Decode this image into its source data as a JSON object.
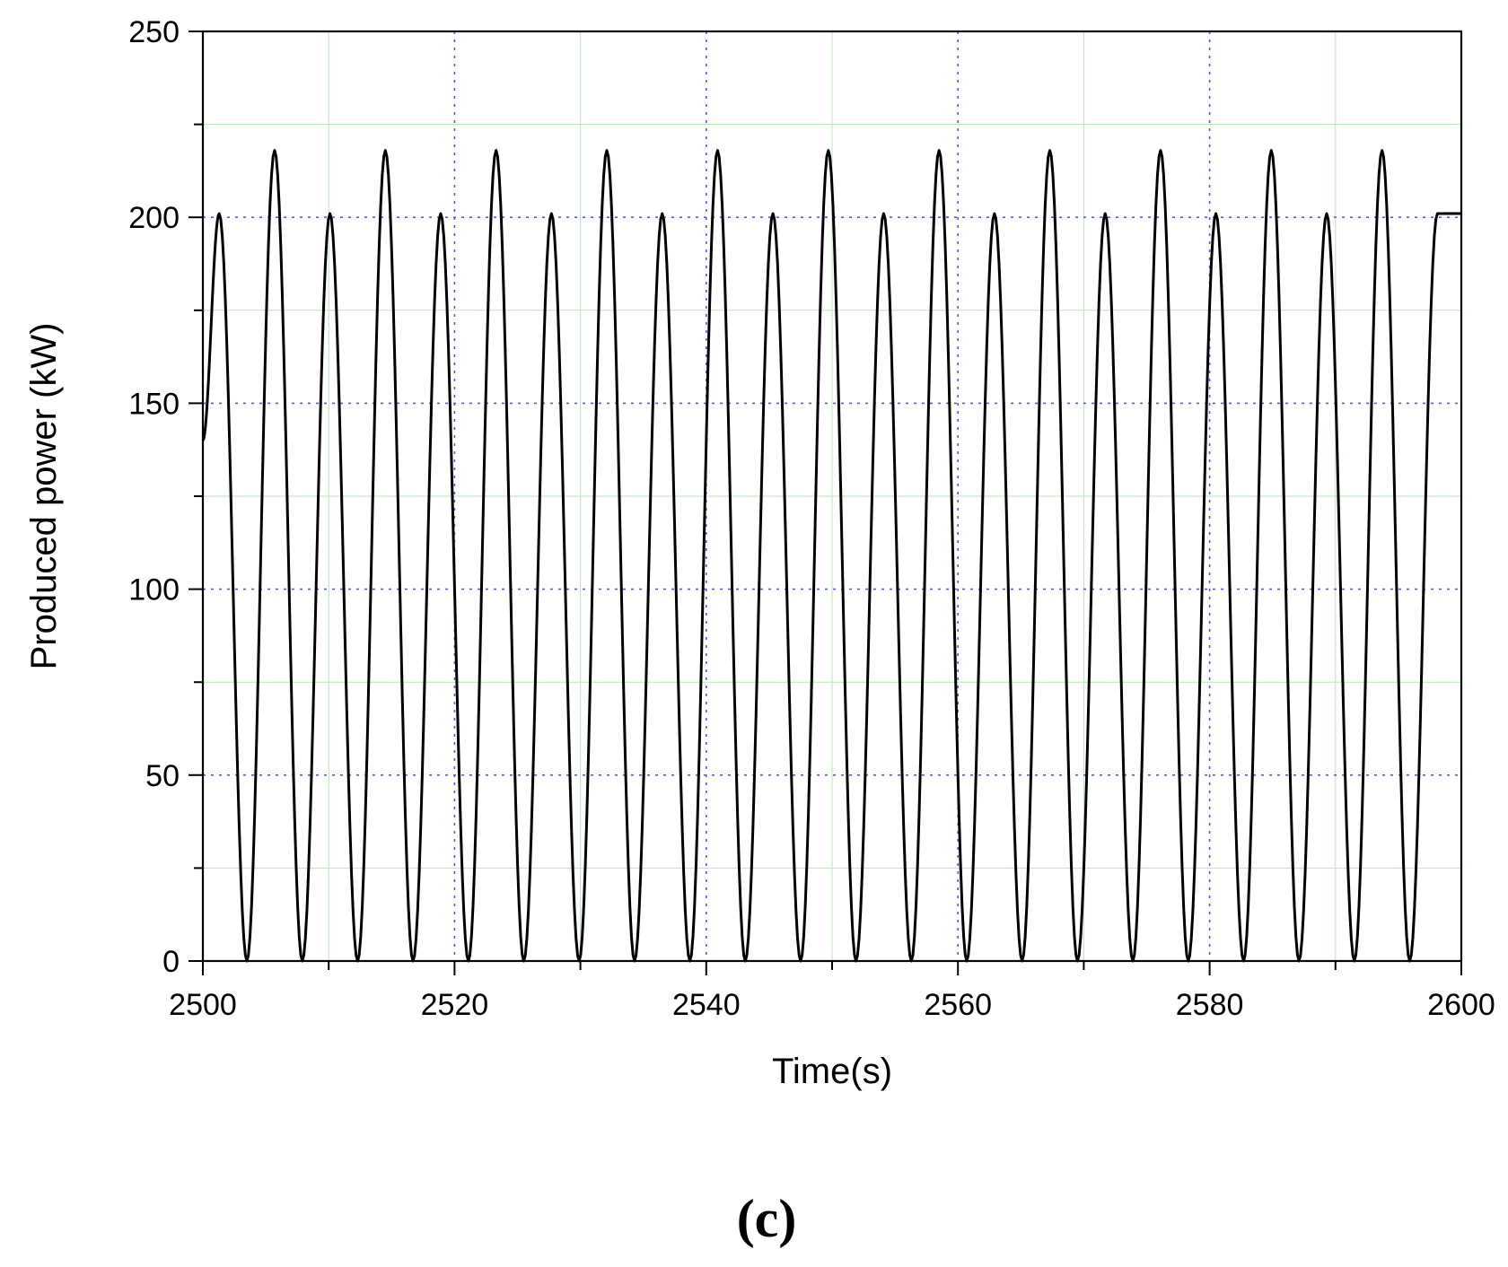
{
  "chart_data": {
    "type": "line",
    "title": "",
    "xlabel": "Time(s)",
    "ylabel": "Produced power (kW)",
    "xlim": [
      2500,
      2600
    ],
    "ylim": [
      0,
      250
    ],
    "x_ticks": [
      2500,
      2520,
      2540,
      2560,
      2580,
      2600
    ],
    "y_ticks": [
      0,
      50,
      100,
      150,
      200,
      250
    ],
    "grid": true,
    "legend": "none",
    "series": [
      {
        "color": "#000000",
        "x": [
          2500.0,
          2501.3,
          2503.5,
          2505.7,
          2507.9,
          2510.1,
          2512.3,
          2514.5,
          2516.7,
          2518.9,
          2521.1,
          2523.3,
          2525.5,
          2527.7,
          2529.9,
          2532.1,
          2534.3,
          2536.5,
          2538.7,
          2540.9,
          2543.1,
          2545.3,
          2547.5,
          2549.7,
          2551.9,
          2554.1,
          2556.3,
          2558.5,
          2560.7,
          2562.9,
          2565.1,
          2567.3,
          2569.5,
          2571.7,
          2573.9,
          2576.1,
          2578.3,
          2580.5,
          2582.7,
          2584.9,
          2587.1,
          2589.3,
          2591.5,
          2593.7,
          2595.9,
          2598.1,
          2600.0
        ],
        "y": [
          140,
          201,
          0,
          218,
          0,
          201,
          0,
          218,
          0,
          201,
          0,
          218,
          0,
          201,
          0,
          218,
          0,
          201,
          0,
          218,
          0,
          201,
          0,
          218,
          0,
          201,
          0,
          218,
          0,
          201,
          0,
          218,
          0,
          201,
          0,
          218,
          0,
          201,
          0,
          218,
          0,
          201,
          0,
          218,
          0,
          201,
          201
        ]
      }
    ]
  },
  "panel_label": "(c)"
}
